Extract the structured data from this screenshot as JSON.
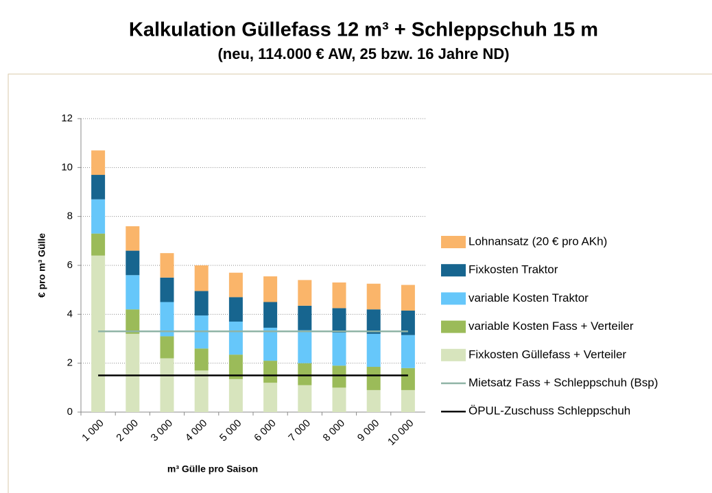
{
  "chart_data": {
    "type": "bar",
    "stacked": true,
    "title": "Kalkulation Güllefass 12 m³ + Schleppschuh 15 m",
    "subtitle": "(neu, 114.000 € AW, 25 bzw. 16 Jahre ND)",
    "x_label": "m³ Gülle pro Saison",
    "y_label": "€ pro m³ Gülle",
    "categories": [
      "1 000",
      "2 000",
      "3 000",
      "4 000",
      "5 000",
      "6 000",
      "7 000",
      "8 000",
      "9 000",
      "10 000"
    ],
    "ylim": [
      0,
      12
    ],
    "yticks": [
      0,
      2,
      4,
      6,
      8,
      10,
      12
    ],
    "grid": true,
    "legend": "right",
    "series": [
      {
        "name": "Fixkosten Güllefass + Verteiler",
        "color": "#d7e4bd",
        "values": [
          6.4,
          3.2,
          2.2,
          1.7,
          1.35,
          1.2,
          1.1,
          1.0,
          0.9,
          0.9
        ]
      },
      {
        "name": "variable Kosten Fass + Verteiler",
        "color": "#9bbb59",
        "values": [
          0.9,
          1.0,
          0.9,
          0.9,
          1.0,
          0.9,
          0.9,
          0.9,
          0.95,
          0.9
        ]
      },
      {
        "name": "variable Kosten Traktor",
        "color": "#66c7fa",
        "values": [
          1.4,
          1.4,
          1.4,
          1.35,
          1.35,
          1.35,
          1.35,
          1.35,
          1.35,
          1.35
        ]
      },
      {
        "name": "Fixkosten Traktor",
        "color": "#17658f",
        "values": [
          1.0,
          1.0,
          1.0,
          1.0,
          1.0,
          1.05,
          1.0,
          1.0,
          1.0,
          1.0
        ]
      },
      {
        "name": "Lohnansatz (20 € pro AKh)",
        "color": "#fab56a",
        "values": [
          1.0,
          1.0,
          1.0,
          1.05,
          1.0,
          1.05,
          1.05,
          1.05,
          1.05,
          1.05
        ]
      },
      {
        "name": "Mietsatz Fass + Schleppschuh (Bsp)",
        "color": "#8fb3a5",
        "type": "line",
        "values": [
          3.3,
          3.3,
          3.3,
          3.3,
          3.3,
          3.3,
          3.3,
          3.3,
          3.3,
          3.3
        ]
      },
      {
        "name": "ÖPUL-Zuschuss Schleppschuh",
        "color": "#000000",
        "type": "line",
        "values": [
          1.5,
          1.5,
          1.5,
          1.5,
          1.5,
          1.5,
          1.5,
          1.5,
          1.5,
          1.5
        ]
      }
    ]
  }
}
